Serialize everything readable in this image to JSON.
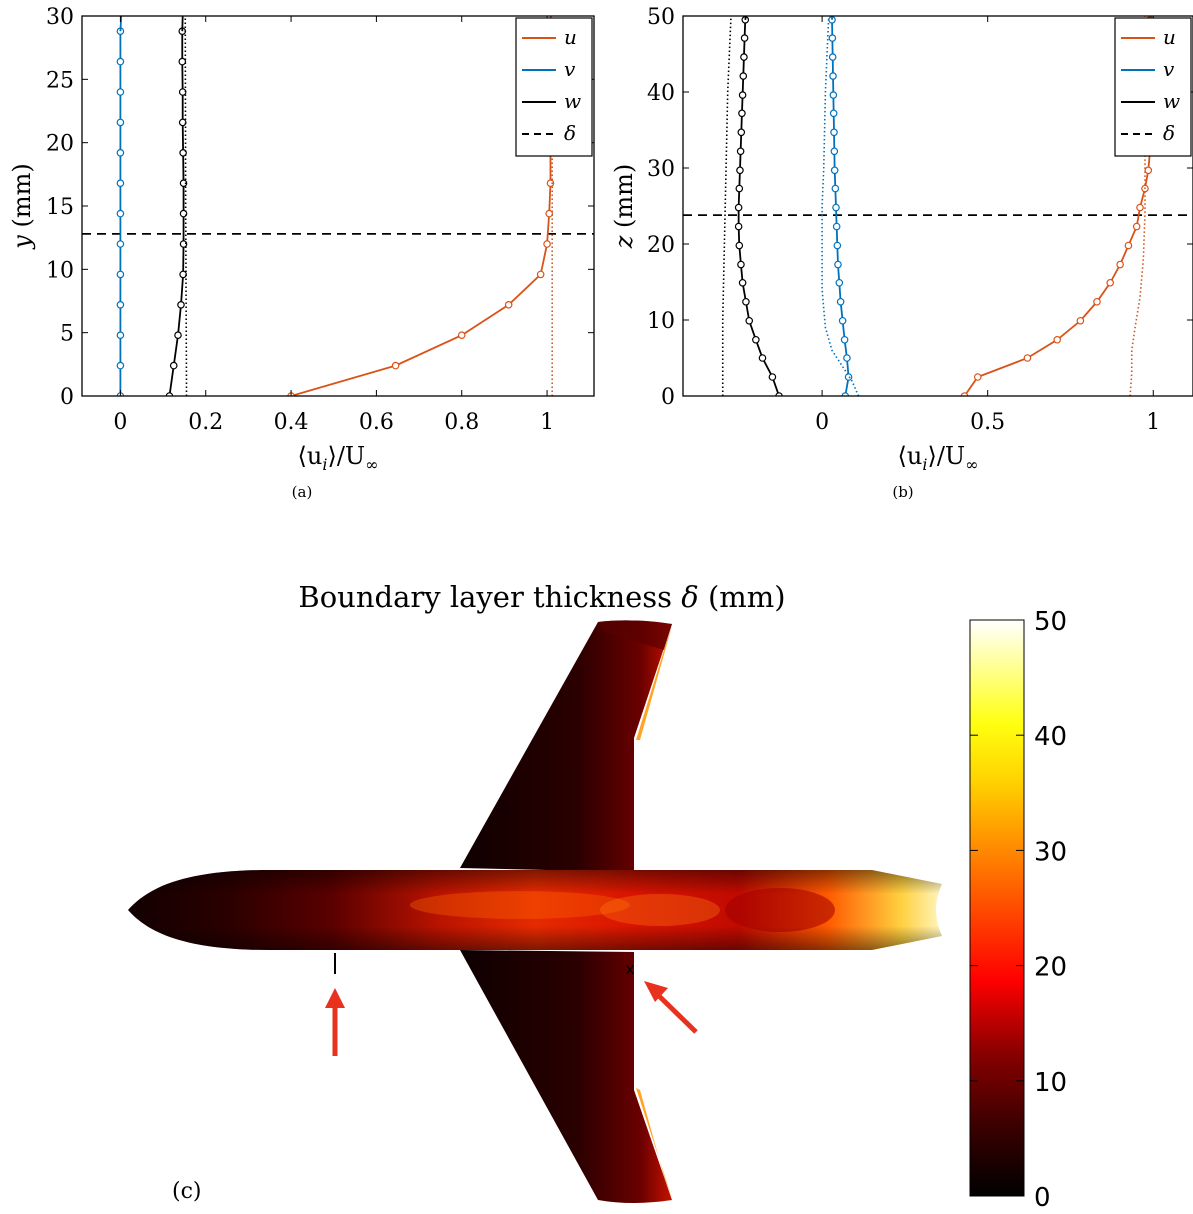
{
  "colors": {
    "u": "#D95319",
    "v": "#0072BD",
    "w": "#000000",
    "arrow": "#e8321e"
  },
  "chart_data": [
    {
      "panel": "(a)",
      "type": "line",
      "xlabel": "⟨u",
      "xlabel_sub": "i",
      "xlabel_tail": "⟩/U",
      "xlabel_inf": "∞",
      "ylabel": "y",
      "ylabel_unit": "(mm)",
      "xlim": [
        -0.09,
        1.11
      ],
      "ylim": [
        0,
        30
      ],
      "xticks": [
        0,
        0.2,
        0.4,
        0.6,
        0.8,
        1
      ],
      "xtick_labels": [
        "0",
        "0.2",
        "0.4",
        "0.6",
        "0.8",
        "1"
      ],
      "yticks": [
        0,
        5,
        10,
        15,
        20,
        25,
        30
      ],
      "ytick_labels": [
        "0",
        "5",
        "10",
        "15",
        "20",
        "25",
        "30"
      ],
      "legend": [
        "u",
        "v",
        "w",
        "δ"
      ],
      "legend_position": "top-right",
      "delta": 12.8,
      "y": [
        0,
        2.4,
        4.8,
        7.2,
        9.6,
        12.0,
        14.4,
        16.8,
        19.2,
        21.6,
        24.0,
        26.4,
        28.8
      ],
      "series": [
        {
          "name": "u",
          "style": "markers",
          "values": [
            0.4,
            0.645,
            0.8,
            0.91,
            0.985,
            1.0,
            1.005,
            1.008,
            1.008,
            1.008,
            1.008,
            1.008,
            1.008
          ]
        },
        {
          "name": "v",
          "style": "markers",
          "values": [
            0.0,
            0.0,
            0.0,
            0.0,
            0.0,
            0.0,
            0.0,
            0.0,
            0.0,
            0.0,
            0.0,
            0.0,
            0.0
          ]
        },
        {
          "name": "w",
          "style": "markers",
          "values": [
            0.115,
            0.125,
            0.135,
            0.142,
            0.147,
            0.148,
            0.148,
            0.148,
            0.147,
            0.146,
            0.146,
            0.145,
            0.145
          ]
        },
        {
          "name": "u",
          "style": "dotted",
          "points": [
            [
              1.012,
              0
            ],
            [
              1.012,
              15
            ],
            [
              1.012,
              30
            ]
          ]
        },
        {
          "name": "w",
          "style": "dotted",
          "points": [
            [
              0.155,
              0
            ],
            [
              0.153,
              15
            ],
            [
              0.152,
              30
            ]
          ]
        },
        {
          "name": "u",
          "style": "solid-line",
          "points": [
            [
              1.008,
              28.8
            ],
            [
              1.009,
              30
            ]
          ]
        },
        {
          "name": "v",
          "style": "solid-line",
          "points": [
            [
              0.0,
              28.8
            ],
            [
              0.002,
              30
            ]
          ]
        },
        {
          "name": "w",
          "style": "solid-line",
          "points": [
            [
              0.145,
              28.8
            ],
            [
              0.146,
              30
            ]
          ]
        }
      ]
    },
    {
      "panel": "(b)",
      "type": "line",
      "xlabel": "⟨u",
      "xlabel_sub": "i",
      "xlabel_tail": "⟩/U",
      "xlabel_inf": "∞",
      "ylabel": "z",
      "ylabel_unit": "(mm)",
      "xlim": [
        -0.42,
        1.12
      ],
      "ylim": [
        0,
        50
      ],
      "xticks": [
        0,
        0.5,
        1
      ],
      "xtick_labels": [
        "0",
        "0.5",
        "1"
      ],
      "yticks": [
        0,
        10,
        20,
        30,
        40,
        50
      ],
      "ytick_labels": [
        "0",
        "10",
        "20",
        "30",
        "40",
        "50"
      ],
      "legend": [
        "u",
        "v",
        "w",
        "δ"
      ],
      "legend_position": "top-right",
      "delta": 23.8,
      "y": [
        0,
        2.5,
        5.0,
        7.4,
        9.9,
        12.4,
        14.9,
        17.3,
        19.8,
        22.3,
        24.8,
        27.3,
        29.7,
        32.2,
        34.7,
        37.2,
        39.6,
        42.1,
        44.6,
        47.1,
        49.5
      ],
      "series": [
        {
          "name": "u",
          "style": "markers",
          "values": [
            0.43,
            0.47,
            0.62,
            0.71,
            0.78,
            0.83,
            0.87,
            0.9,
            0.925,
            0.95,
            0.96,
            0.975,
            0.985,
            0.99,
            0.99,
            0.99,
            0.99,
            0.99,
            0.99,
            0.99,
            0.99
          ]
        },
        {
          "name": "v",
          "style": "markers",
          "values": [
            0.07,
            0.08,
            0.075,
            0.068,
            0.062,
            0.056,
            0.052,
            0.048,
            0.046,
            0.044,
            0.042,
            0.04,
            0.038,
            0.037,
            0.036,
            0.035,
            0.034,
            0.033,
            0.032,
            0.031,
            0.03
          ]
        },
        {
          "name": "w",
          "style": "markers",
          "values": [
            -0.13,
            -0.15,
            -0.18,
            -0.2,
            -0.22,
            -0.23,
            -0.24,
            -0.245,
            -0.25,
            -0.252,
            -0.252,
            -0.25,
            -0.248,
            -0.246,
            -0.244,
            -0.242,
            -0.24,
            -0.238,
            -0.236,
            -0.234,
            -0.232
          ]
        },
        {
          "name": "u",
          "style": "dotted",
          "points": [
            [
              0.93,
              0
            ],
            [
              0.935,
              3
            ],
            [
              0.935,
              6
            ],
            [
              0.945,
              9
            ],
            [
              0.96,
              13
            ],
            [
              0.97,
              18
            ],
            [
              0.975,
              24
            ],
            [
              0.975,
              30
            ],
            [
              0.975,
              40
            ],
            [
              0.975,
              50
            ]
          ]
        },
        {
          "name": "v",
          "style": "dotted",
          "points": [
            [
              0.11,
              0
            ],
            [
              0.09,
              2
            ],
            [
              0.06,
              4
            ],
            [
              0.03,
              6
            ],
            [
              0.01,
              9
            ],
            [
              0.0,
              14
            ],
            [
              0.0,
              20
            ],
            [
              0.0,
              25
            ],
            [
              0.005,
              30
            ],
            [
              0.01,
              40
            ],
            [
              0.02,
              50
            ]
          ]
        },
        {
          "name": "w",
          "style": "dotted",
          "points": [
            [
              -0.3,
              0
            ],
            [
              -0.3,
              10
            ],
            [
              -0.295,
              20
            ],
            [
              -0.29,
              30
            ],
            [
              -0.285,
              40
            ],
            [
              -0.275,
              50
            ]
          ]
        },
        {
          "name": "u",
          "style": "solid-line",
          "points": [
            [
              0.99,
              49.5
            ],
            [
              0.99,
              50
            ]
          ]
        },
        {
          "name": "v",
          "style": "solid-line",
          "points": [
            [
              0.03,
              49.5
            ],
            [
              0.03,
              50
            ]
          ]
        },
        {
          "name": "w",
          "style": "solid-line",
          "points": [
            [
              -0.232,
              49.5
            ],
            [
              -0.23,
              50
            ]
          ]
        }
      ]
    },
    {
      "panel": "(c)",
      "type": "heatmap",
      "title": "Boundary layer thickness ",
      "title_symbol": "δ",
      "title_unit": " (mm)",
      "colorbar_range": [
        0,
        50
      ],
      "colorbar_ticks": [
        0,
        10,
        20,
        30,
        40,
        50
      ],
      "colorbar_tick_labels": [
        "0",
        "10",
        "20",
        "30",
        "40",
        "50"
      ],
      "colormap": "hot",
      "marker_label": "x"
    }
  ]
}
